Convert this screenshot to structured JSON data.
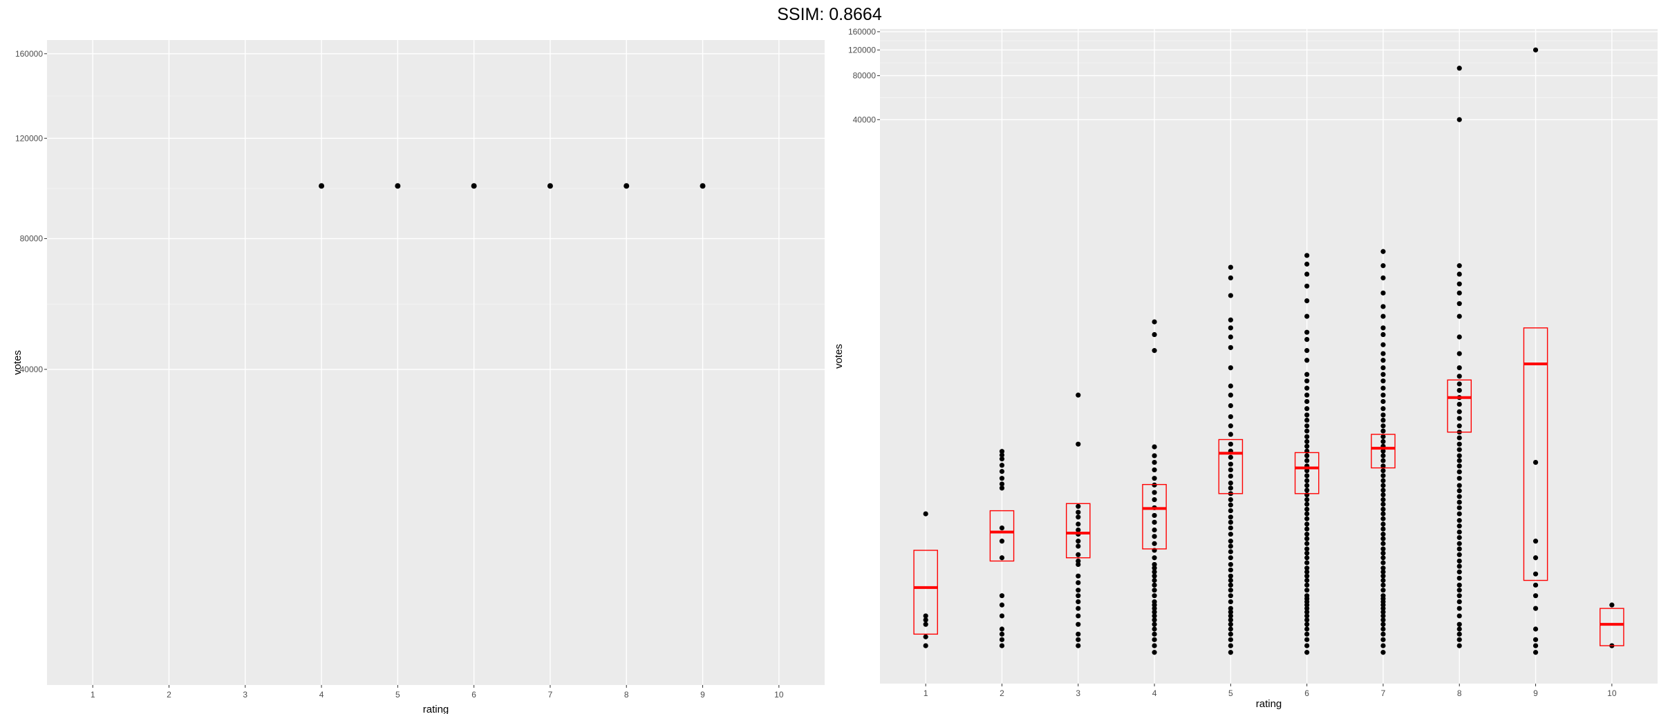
{
  "title": "SSIM: 0.8664",
  "chart_data": [
    {
      "type": "scatter",
      "xlabel": "rating",
      "ylabel": "votes",
      "x_ticks": [
        "1",
        "2",
        "3",
        "4",
        "5",
        "6",
        "7",
        "8",
        "9",
        "10"
      ],
      "y_ticks": [
        "40000",
        "80000",
        "120000",
        "160000"
      ],
      "y_tick_values": [
        40000,
        80000,
        120000,
        160000
      ],
      "y_scale": "sqrt",
      "xlim": [
        0.4,
        10.6
      ],
      "ylim": [
        0,
        167000
      ],
      "grid": true,
      "points": [
        [
          4,
          100000
        ],
        [
          5,
          100000
        ],
        [
          6,
          100000
        ],
        [
          7,
          100000
        ],
        [
          8,
          100000
        ],
        [
          9,
          100000
        ]
      ]
    },
    {
      "type": "box+scatter",
      "xlabel": "rating",
      "ylabel": "votes",
      "x_ticks": [
        "1",
        "2",
        "3",
        "4",
        "5",
        "6",
        "7",
        "8",
        "9",
        "10"
      ],
      "y_ticks": [
        "40000",
        "80000",
        "120000",
        "160000"
      ],
      "y_tick_values": [
        40000,
        80000,
        120000,
        160000
      ],
      "y_scale": "log10",
      "xlim": [
        0.4,
        10.6
      ],
      "ylim": [
        5.5,
        167000
      ],
      "grid": true,
      "box_color": "#ff0000",
      "boxes": [
        {
          "x": 1,
          "q1": 12,
          "median": 25,
          "q3": 45
        },
        {
          "x": 2,
          "q1": 38,
          "median": 60,
          "q3": 84
        },
        {
          "x": 3,
          "q1": 40,
          "median": 59,
          "q3": 94
        },
        {
          "x": 4,
          "q1": 46,
          "median": 87,
          "q3": 127
        },
        {
          "x": 5,
          "q1": 110,
          "median": 208,
          "q3": 258
        },
        {
          "x": 6,
          "q1": 110,
          "median": 165,
          "q3": 210
        },
        {
          "x": 7,
          "q1": 165,
          "median": 225,
          "q3": 280
        },
        {
          "x": 8,
          "q1": 290,
          "median": 500,
          "q3": 660
        },
        {
          "x": 9,
          "q1": 28,
          "median": 850,
          "q3": 1500
        },
        {
          "x": 10,
          "q1": 10,
          "median": 14,
          "q3": 18
        }
      ],
      "points": [
        [
          1,
          10
        ],
        [
          1,
          11.5
        ],
        [
          1,
          14
        ],
        [
          1,
          15
        ],
        [
          1,
          16
        ],
        [
          1,
          80
        ],
        [
          2,
          10
        ],
        [
          2,
          11
        ],
        [
          2,
          12
        ],
        [
          2,
          13
        ],
        [
          2,
          16
        ],
        [
          2,
          19
        ],
        [
          2,
          22
        ],
        [
          2,
          40
        ],
        [
          2,
          52
        ],
        [
          2,
          64
        ],
        [
          2,
          120
        ],
        [
          2,
          128
        ],
        [
          2,
          140
        ],
        [
          2,
          156
        ],
        [
          2,
          172
        ],
        [
          2,
          190
        ],
        [
          2,
          202
        ],
        [
          2,
          214
        ],
        [
          3,
          10
        ],
        [
          3,
          11
        ],
        [
          3,
          12
        ],
        [
          3,
          14
        ],
        [
          3,
          16
        ],
        [
          3,
          18
        ],
        [
          3,
          20
        ],
        [
          3,
          22
        ],
        [
          3,
          24
        ],
        [
          3,
          27
        ],
        [
          3,
          30
        ],
        [
          3,
          36
        ],
        [
          3,
          38
        ],
        [
          3,
          42
        ],
        [
          3,
          48
        ],
        [
          3,
          52
        ],
        [
          3,
          58
        ],
        [
          3,
          62
        ],
        [
          3,
          68
        ],
        [
          3,
          76
        ],
        [
          3,
          82
        ],
        [
          3,
          90
        ],
        [
          3,
          240
        ],
        [
          3,
          520
        ],
        [
          4,
          9
        ],
        [
          4,
          10
        ],
        [
          4,
          11
        ],
        [
          4,
          12
        ],
        [
          4,
          13
        ],
        [
          4,
          14
        ],
        [
          4,
          15
        ],
        [
          4,
          16
        ],
        [
          4,
          17
        ],
        [
          4,
          18
        ],
        [
          4,
          19
        ],
        [
          4,
          20
        ],
        [
          4,
          22
        ],
        [
          4,
          24
        ],
        [
          4,
          26
        ],
        [
          4,
          28
        ],
        [
          4,
          30
        ],
        [
          4,
          32
        ],
        [
          4,
          34
        ],
        [
          4,
          36
        ],
        [
          4,
          40
        ],
        [
          4,
          45
        ],
        [
          4,
          50
        ],
        [
          4,
          56
        ],
        [
          4,
          62
        ],
        [
          4,
          70
        ],
        [
          4,
          78
        ],
        [
          4,
          88
        ],
        [
          4,
          100
        ],
        [
          4,
          112
        ],
        [
          4,
          126
        ],
        [
          4,
          140
        ],
        [
          4,
          160
        ],
        [
          4,
          180
        ],
        [
          4,
          200
        ],
        [
          4,
          230
        ],
        [
          4,
          1050
        ],
        [
          4,
          1350
        ],
        [
          4,
          1650
        ],
        [
          5,
          9
        ],
        [
          5,
          10
        ],
        [
          5,
          11
        ],
        [
          5,
          12
        ],
        [
          5,
          13
        ],
        [
          5,
          14
        ],
        [
          5,
          15
        ],
        [
          5,
          16
        ],
        [
          5,
          17
        ],
        [
          5,
          18
        ],
        [
          5,
          20
        ],
        [
          5,
          22
        ],
        [
          5,
          24
        ],
        [
          5,
          26
        ],
        [
          5,
          28
        ],
        [
          5,
          30
        ],
        [
          5,
          33
        ],
        [
          5,
          36
        ],
        [
          5,
          40
        ],
        [
          5,
          44
        ],
        [
          5,
          48
        ],
        [
          5,
          52
        ],
        [
          5,
          58
        ],
        [
          5,
          64
        ],
        [
          5,
          70
        ],
        [
          5,
          76
        ],
        [
          5,
          84
        ],
        [
          5,
          92
        ],
        [
          5,
          100
        ],
        [
          5,
          110
        ],
        [
          5,
          120
        ],
        [
          5,
          130
        ],
        [
          5,
          145
        ],
        [
          5,
          160
        ],
        [
          5,
          175
        ],
        [
          5,
          195
        ],
        [
          5,
          215
        ],
        [
          5,
          240
        ],
        [
          5,
          280
        ],
        [
          5,
          320
        ],
        [
          5,
          370
        ],
        [
          5,
          440
        ],
        [
          5,
          520
        ],
        [
          5,
          600
        ],
        [
          5,
          800
        ],
        [
          5,
          1100
        ],
        [
          5,
          1300
        ],
        [
          5,
          1500
        ],
        [
          5,
          1700
        ],
        [
          5,
          2500
        ],
        [
          5,
          3300
        ],
        [
          5,
          3900
        ],
        [
          6,
          9
        ],
        [
          6,
          10
        ],
        [
          6,
          11
        ],
        [
          6,
          12
        ],
        [
          6,
          13
        ],
        [
          6,
          14
        ],
        [
          6,
          15
        ],
        [
          6,
          16
        ],
        [
          6,
          17
        ],
        [
          6,
          18
        ],
        [
          6,
          19
        ],
        [
          6,
          20
        ],
        [
          6,
          21
        ],
        [
          6,
          22
        ],
        [
          6,
          24
        ],
        [
          6,
          26
        ],
        [
          6,
          28
        ],
        [
          6,
          30
        ],
        [
          6,
          32
        ],
        [
          6,
          34
        ],
        [
          6,
          37
        ],
        [
          6,
          40
        ],
        [
          6,
          43
        ],
        [
          6,
          46
        ],
        [
          6,
          50
        ],
        [
          6,
          54
        ],
        [
          6,
          58
        ],
        [
          6,
          63
        ],
        [
          6,
          68
        ],
        [
          6,
          74
        ],
        [
          6,
          80
        ],
        [
          6,
          86
        ],
        [
          6,
          93
        ],
        [
          6,
          100
        ],
        [
          6,
          108
        ],
        [
          6,
          116
        ],
        [
          6,
          125
        ],
        [
          6,
          135
        ],
        [
          6,
          146
        ],
        [
          6,
          158
        ],
        [
          6,
          170
        ],
        [
          6,
          185
        ],
        [
          6,
          200
        ],
        [
          6,
          215
        ],
        [
          6,
          232
        ],
        [
          6,
          250
        ],
        [
          6,
          270
        ],
        [
          6,
          295
        ],
        [
          6,
          320
        ],
        [
          6,
          350
        ],
        [
          6,
          380
        ],
        [
          6,
          420
        ],
        [
          6,
          470
        ],
        [
          6,
          520
        ],
        [
          6,
          580
        ],
        [
          6,
          650
        ],
        [
          6,
          720
        ],
        [
          6,
          900
        ],
        [
          6,
          1050
        ],
        [
          6,
          1250
        ],
        [
          6,
          1400
        ],
        [
          6,
          1800
        ],
        [
          6,
          2300
        ],
        [
          6,
          2900
        ],
        [
          6,
          3500
        ],
        [
          6,
          4100
        ],
        [
          6,
          4700
        ],
        [
          7,
          9
        ],
        [
          7,
          10
        ],
        [
          7,
          11
        ],
        [
          7,
          12
        ],
        [
          7,
          13
        ],
        [
          7,
          14
        ],
        [
          7,
          15
        ],
        [
          7,
          16
        ],
        [
          7,
          17
        ],
        [
          7,
          18
        ],
        [
          7,
          19
        ],
        [
          7,
          20
        ],
        [
          7,
          21
        ],
        [
          7,
          22
        ],
        [
          7,
          24
        ],
        [
          7,
          26
        ],
        [
          7,
          28
        ],
        [
          7,
          30
        ],
        [
          7,
          32
        ],
        [
          7,
          34
        ],
        [
          7,
          37
        ],
        [
          7,
          40
        ],
        [
          7,
          43
        ],
        [
          7,
          46
        ],
        [
          7,
          50
        ],
        [
          7,
          54
        ],
        [
          7,
          58
        ],
        [
          7,
          63
        ],
        [
          7,
          68
        ],
        [
          7,
          74
        ],
        [
          7,
          80
        ],
        [
          7,
          86
        ],
        [
          7,
          93
        ],
        [
          7,
          100
        ],
        [
          7,
          108
        ],
        [
          7,
          116
        ],
        [
          7,
          125
        ],
        [
          7,
          135
        ],
        [
          7,
          146
        ],
        [
          7,
          158
        ],
        [
          7,
          170
        ],
        [
          7,
          185
        ],
        [
          7,
          200
        ],
        [
          7,
          215
        ],
        [
          7,
          232
        ],
        [
          7,
          250
        ],
        [
          7,
          270
        ],
        [
          7,
          295
        ],
        [
          7,
          320
        ],
        [
          7,
          350
        ],
        [
          7,
          380
        ],
        [
          7,
          420
        ],
        [
          7,
          470
        ],
        [
          7,
          520
        ],
        [
          7,
          580
        ],
        [
          7,
          650
        ],
        [
          7,
          720
        ],
        [
          7,
          800
        ],
        [
          7,
          900
        ],
        [
          7,
          1000
        ],
        [
          7,
          1150
        ],
        [
          7,
          1350
        ],
        [
          7,
          1500
        ],
        [
          7,
          1800
        ],
        [
          7,
          2100
        ],
        [
          7,
          2600
        ],
        [
          7,
          3300
        ],
        [
          7,
          4000
        ],
        [
          7,
          5000
        ],
        [
          8,
          10
        ],
        [
          8,
          11
        ],
        [
          8,
          12
        ],
        [
          8,
          13
        ],
        [
          8,
          14
        ],
        [
          8,
          16
        ],
        [
          8,
          18
        ],
        [
          8,
          20
        ],
        [
          8,
          22
        ],
        [
          8,
          24
        ],
        [
          8,
          26
        ],
        [
          8,
          29
        ],
        [
          8,
          32
        ],
        [
          8,
          35
        ],
        [
          8,
          38
        ],
        [
          8,
          42
        ],
        [
          8,
          46
        ],
        [
          8,
          50
        ],
        [
          8,
          55
        ],
        [
          8,
          60
        ],
        [
          8,
          66
        ],
        [
          8,
          72
        ],
        [
          8,
          80
        ],
        [
          8,
          88
        ],
        [
          8,
          96
        ],
        [
          8,
          105
        ],
        [
          8,
          115
        ],
        [
          8,
          125
        ],
        [
          8,
          140
        ],
        [
          8,
          155
        ],
        [
          8,
          170
        ],
        [
          8,
          185
        ],
        [
          8,
          200
        ],
        [
          8,
          220
        ],
        [
          8,
          240
        ],
        [
          8,
          265
        ],
        [
          8,
          290
        ],
        [
          8,
          320
        ],
        [
          8,
          360
        ],
        [
          8,
          400
        ],
        [
          8,
          450
        ],
        [
          8,
          500
        ],
        [
          8,
          560
        ],
        [
          8,
          620
        ],
        [
          8,
          700
        ],
        [
          8,
          800
        ],
        [
          8,
          1000
        ],
        [
          8,
          1300
        ],
        [
          8,
          1800
        ],
        [
          8,
          2200
        ],
        [
          8,
          2600
        ],
        [
          8,
          3000
        ],
        [
          8,
          3500
        ],
        [
          8,
          4000
        ],
        [
          8,
          40000
        ],
        [
          8,
          90000
        ],
        [
          9,
          9
        ],
        [
          9,
          10
        ],
        [
          9,
          11
        ],
        [
          9,
          13
        ],
        [
          9,
          18
        ],
        [
          9,
          22
        ],
        [
          9,
          26
        ],
        [
          9,
          31
        ],
        [
          9,
          40
        ],
        [
          9,
          52
        ],
        [
          9,
          180
        ],
        [
          9,
          120000
        ],
        [
          10,
          10
        ],
        [
          10,
          19
        ]
      ]
    }
  ]
}
